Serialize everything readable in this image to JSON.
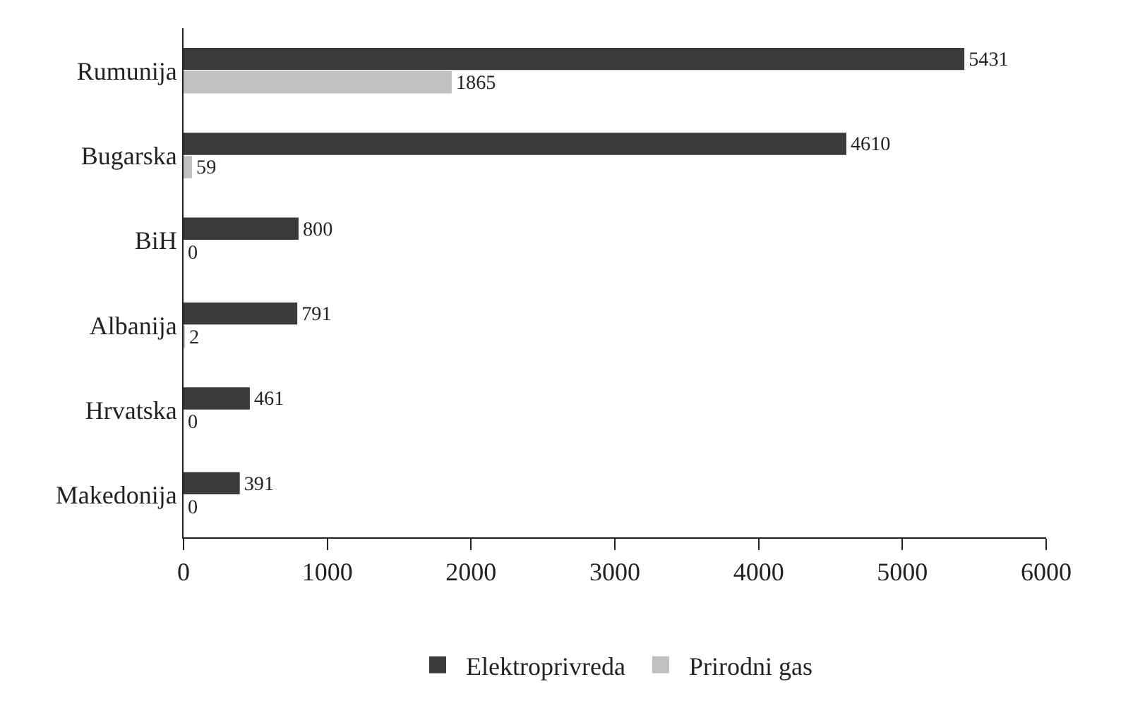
{
  "chart_data": {
    "type": "bar",
    "orientation": "horizontal",
    "categories": [
      "Rumunija",
      "Bugarska",
      "BiH",
      "Albanija",
      "Hrvatska",
      "Makedonija"
    ],
    "series": [
      {
        "name": "Elektroprivreda",
        "color": "#3a3a3a",
        "values": [
          5431,
          4610,
          800,
          791,
          461,
          391
        ]
      },
      {
        "name": "Prirodni gas",
        "color": "#c0c0c0",
        "values": [
          1865,
          59,
          0,
          2,
          0,
          0
        ]
      }
    ],
    "xlim": [
      0,
      6000
    ],
    "xticks": [
      0,
      1000,
      2000,
      3000,
      4000,
      5000,
      6000
    ],
    "data_labels": true,
    "grid": false,
    "legend": "bottom"
  }
}
